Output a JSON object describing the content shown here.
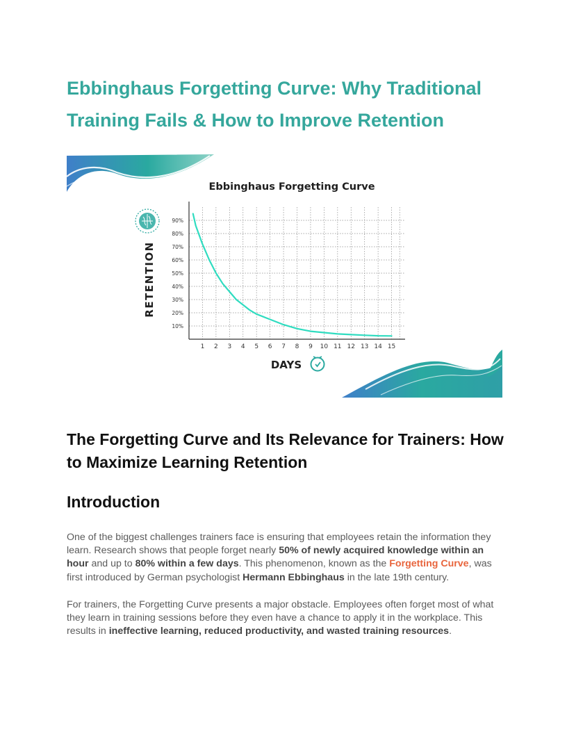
{
  "title": "Ebbinghaus Forgetting Curve: Why Traditional Training Fails & How to Improve Retention",
  "figure": {
    "colors": {
      "curve": "#2fdcc0",
      "teal": "#2aa9a0",
      "blue": "#3f7fc9",
      "text": "#1f1f1f"
    },
    "icons": [
      "brain-icon",
      "clock-icon"
    ]
  },
  "chart_data": {
    "type": "line",
    "title": "Ebbinghaus Forgetting Curve",
    "xlabel": "DAYS",
    "ylabel": "RETENTION",
    "x_ticks": [
      "1",
      "2",
      "3",
      "4",
      "5",
      "6",
      "7",
      "8",
      "9",
      "10",
      "11",
      "12",
      "13",
      "14",
      "15"
    ],
    "y_ticks": [
      "10%",
      "20%",
      "30%",
      "40%",
      "50%",
      "60%",
      "70%",
      "80%",
      "90%"
    ],
    "xlim": [
      0,
      16
    ],
    "ylim": [
      0,
      100
    ],
    "grid": true,
    "series": [
      {
        "x": [
          0.3,
          0.5,
          1,
          1.5,
          2,
          2.5,
          3,
          3.5,
          4,
          4.5,
          5,
          5.5,
          6,
          7,
          8,
          9,
          10,
          11,
          12,
          13,
          14,
          15
        ],
        "y": [
          95,
          86,
          72,
          60,
          50,
          42,
          36,
          30,
          26,
          22,
          19,
          17,
          15,
          11,
          8,
          6,
          5,
          4,
          3.5,
          3,
          2.6,
          2.5
        ]
      }
    ]
  },
  "sections": {
    "h2": "The Forgetting Curve and Its Relevance for Trainers: How to Maximize Learning Retention",
    "h3": "Introduction"
  },
  "para1": {
    "s1": "One of the biggest challenges trainers face is ensuring that employees retain the information they learn. Research shows that people forget nearly ",
    "b1": "50% of newly acquired knowledge within an hour",
    "s2": " and up to ",
    "b2": "80% within a few days",
    "s3": ". This phenomenon, known as the ",
    "hl": "Forgetting Curve",
    "s4": ", was first introduced by German psychologist ",
    "b3": "Hermann Ebbinghaus",
    "s5": " in the late 19th century."
  },
  "para2": {
    "s1": "For trainers, the Forgetting Curve presents a major obstacle. Employees often forget most of what they learn in training sessions before they even have a chance to apply it in the workplace. This results in ",
    "b1": "ineffective learning, reduced productivity, and wasted training resources",
    "s2": "."
  }
}
